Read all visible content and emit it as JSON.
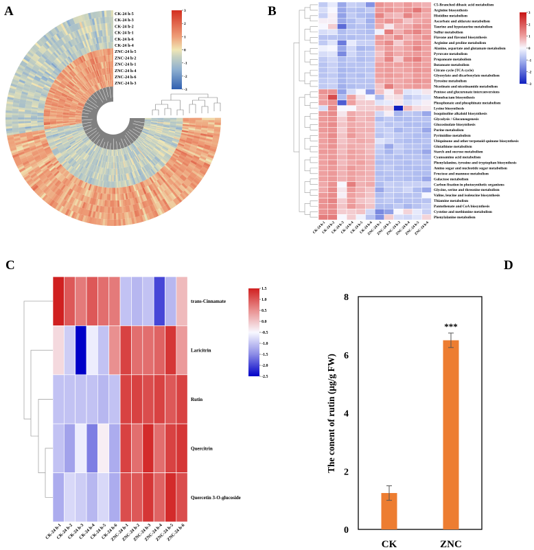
{
  "panel_labels": {
    "a": "A",
    "b": "B",
    "c": "C",
    "d": "D"
  },
  "chart_data": [
    {
      "panel": "A",
      "type": "heatmap",
      "layout": "circular",
      "ring_labels": [
        "CK-24 h-5",
        "CK-24 h-3",
        "CK-24 h-2",
        "CK-24 h-1",
        "CK-24 h-6",
        "CK-24 h-4",
        "ZNC-24 h-5",
        "ZNC-24 h-2",
        "ZNC-24 h-1",
        "ZNC-24 h-4",
        "ZNC-24 h-6",
        "ZNC-24 h-3"
      ],
      "colorbar_ticks": [
        "3",
        "2",
        "1",
        "0",
        "-1",
        "-2",
        "-3"
      ],
      "value_range": [
        -3,
        3
      ],
      "colors": {
        "low": "#2f5fb0",
        "mid": "#f0e6b4",
        "high": "#d32f20"
      },
      "segments": 220,
      "clusters": [
        {
          "fraction": 0.37,
          "ck_mean": -0.7,
          "znc_mean": 1.0
        },
        {
          "fraction": 0.63,
          "ck_mean": 0.9,
          "znc_mean": -0.6
        }
      ]
    },
    {
      "panel": "B",
      "type": "heatmap",
      "columns": [
        "CK-24 h-1",
        "CK-24 h-2",
        "CK-24 h-3",
        "CK-24 h-4",
        "CK-24 h-5",
        "CK-24 h-6",
        "ZNC-24 h-1",
        "ZNC-24 h-2",
        "ZNC-24 h-3",
        "ZNC-24 h-4",
        "ZNC-24 h-5",
        "ZNC-24 h-6"
      ],
      "colorbar_ticks": [
        "3",
        "2",
        "1",
        "0",
        "-1",
        "-2",
        "-3"
      ],
      "value_range": [
        -3,
        3
      ],
      "rows": [
        {
          "name": "C5-Branched dibasic acid metabolism",
          "values": [
            -0.7,
            -0.2,
            -1.2,
            -0.6,
            -0.7,
            -1.5,
            1.2,
            1.0,
            0.9,
            1.1,
            0.9,
            0.8
          ]
        },
        {
          "name": "Arginine biosynthesis",
          "values": [
            -0.4,
            0.0,
            -1.2,
            -0.8,
            -0.9,
            -0.7,
            1.1,
            1.2,
            1.0,
            1.2,
            1.6,
            1.0
          ]
        },
        {
          "name": "Histidine metabolism",
          "values": [
            -0.6,
            0.1,
            -1.3,
            -0.7,
            -0.9,
            -1.0,
            1.4,
            0.8,
            0.7,
            1.4,
            1.0,
            0.9
          ]
        },
        {
          "name": "Ascorbate and aldarate metabolism",
          "values": [
            0.1,
            0.1,
            -1.2,
            -0.9,
            -0.6,
            -1.1,
            1.0,
            1.2,
            1.0,
            0.6,
            0.9,
            1.0
          ]
        },
        {
          "name": "Taurine and hypotaurine metabolism",
          "values": [
            0.0,
            0.5,
            -2.0,
            -0.9,
            -0.8,
            -1.0,
            0.9,
            0.2,
            0.8,
            0.9,
            1.2,
            1.1
          ]
        },
        {
          "name": "Sulfur metabolism",
          "values": [
            -0.4,
            -0.3,
            -0.9,
            -0.7,
            -0.8,
            -0.9,
            -0.1,
            1.5,
            0.8,
            1.2,
            1.4,
            1.0
          ]
        },
        {
          "name": "Flavone and flavonol biosynthesis",
          "values": [
            -0.8,
            -0.8,
            -0.9,
            -0.9,
            -0.8,
            -0.8,
            1.1,
            0.9,
            1.3,
            0.8,
            1.0,
            1.2
          ]
        },
        {
          "name": "Arginine and proline metabolism",
          "values": [
            -0.7,
            -0.3,
            -1.8,
            -0.2,
            -0.6,
            -0.6,
            1.0,
            1.3,
            0.5,
            1.0,
            1.2,
            1.0
          ]
        },
        {
          "name": "Alanine, aspartate and glutamate metabolism",
          "values": [
            -0.1,
            0.0,
            -1.2,
            -0.5,
            -1.0,
            -0.9,
            0.8,
            1.1,
            0.8,
            1.0,
            1.4,
            1.0
          ]
        },
        {
          "name": "Pyruvate metabolism",
          "values": [
            -0.4,
            -0.3,
            -1.6,
            -0.5,
            -0.8,
            -0.7,
            0.6,
            1.2,
            0.9,
            1.0,
            1.1,
            1.0
          ]
        },
        {
          "name": "Propanoate metabolism",
          "values": [
            -0.7,
            -0.5,
            -0.9,
            -0.7,
            -0.9,
            -0.8,
            0.8,
            1.4,
            0.5,
            1.3,
            1.5,
            1.0
          ]
        },
        {
          "name": "Butanoate metabolism",
          "values": [
            -0.8,
            -0.6,
            -0.9,
            -0.8,
            -0.8,
            -0.7,
            1.0,
            1.0,
            1.0,
            1.0,
            1.1,
            1.0
          ]
        },
        {
          "name": "Citrate cycle (TCA cycle)",
          "values": [
            -0.8,
            -0.6,
            -1.0,
            -0.9,
            -0.8,
            -0.8,
            1.0,
            1.1,
            0.9,
            1.0,
            1.2,
            1.1
          ]
        },
        {
          "name": "Glyoxylate and dicarboxylate metabolism",
          "values": [
            -0.8,
            -0.7,
            -1.0,
            -0.8,
            -0.9,
            -0.7,
            1.0,
            1.1,
            1.0,
            0.9,
            1.1,
            1.0
          ]
        },
        {
          "name": "Tyrosine metabolism",
          "values": [
            -0.7,
            -0.6,
            -1.0,
            -0.8,
            -0.8,
            -0.8,
            0.9,
            1.0,
            0.9,
            1.0,
            1.2,
            1.1
          ]
        },
        {
          "name": "Nicotinate and nicotinamide metabolism",
          "values": [
            -0.7,
            -0.6,
            -1.1,
            -0.9,
            -0.8,
            -0.8,
            0.6,
            1.5,
            0.9,
            1.0,
            1.1,
            1.0
          ]
        },
        {
          "name": "Pentose and glucuronate interconversions",
          "values": [
            1.2,
            1.2,
            -1.3,
            -0.4,
            0.0,
            -1.4,
            0.6,
            0.1,
            0.8,
            -0.3,
            -0.2,
            0.2
          ]
        },
        {
          "name": "Monobactam biosynthesis",
          "values": [
            1.0,
            2.2,
            -0.9,
            1.0,
            0.3,
            0.0,
            -0.9,
            0.2,
            0.3,
            -0.7,
            -0.5,
            -0.3
          ]
        },
        {
          "name": "Phosphonate and phosphinate metabolism",
          "values": [
            1.0,
            1.2,
            -2.2,
            1.0,
            0.5,
            0.5,
            -0.3,
            -0.2,
            0.2,
            -0.4,
            -0.2,
            0.1
          ]
        },
        {
          "name": "Lysine biosynthesis",
          "values": [
            -0.4,
            1.3,
            0.0,
            0.0,
            0.5,
            0.5,
            0.6,
            0.4,
            -3.0,
            0.7,
            0.3,
            0.2
          ]
        },
        {
          "name": "Isoquinoline alkaloid biosynthesis",
          "values": [
            1.1,
            1.3,
            0.2,
            0.9,
            0.7,
            0.7,
            -0.5,
            0.1,
            -1.0,
            -0.7,
            -0.8,
            -1.2
          ]
        },
        {
          "name": "Glycolysis / Gluconeogenesis",
          "values": [
            1.1,
            1.2,
            0.5,
            1.0,
            0.7,
            0.8,
            -0.9,
            -0.7,
            -0.9,
            -0.9,
            -0.8,
            -0.8
          ]
        },
        {
          "name": "Glucosinolate biosynthesis",
          "values": [
            1.1,
            1.3,
            0.6,
            0.9,
            0.8,
            0.7,
            -0.6,
            -0.8,
            -0.7,
            -0.9,
            -0.9,
            -0.9
          ]
        },
        {
          "name": "Purine metabolism",
          "values": [
            1.1,
            1.2,
            0.5,
            1.0,
            0.8,
            0.8,
            -0.7,
            -0.6,
            -1.0,
            -0.8,
            -0.8,
            -1.2
          ]
        },
        {
          "name": "Pyrimidine metabolism",
          "values": [
            1.0,
            1.3,
            0.6,
            1.1,
            0.8,
            0.7,
            -0.8,
            -0.6,
            -0.7,
            -0.8,
            -0.9,
            -0.9
          ]
        },
        {
          "name": "Ubiquinone and other terpenoid-quinone biosynthesis",
          "values": [
            1.0,
            1.2,
            0.6,
            0.8,
            0.9,
            0.8,
            -0.3,
            -0.5,
            -0.8,
            -0.9,
            -0.9,
            -0.8
          ]
        },
        {
          "name": "Glutathione metabolism",
          "values": [
            1.0,
            1.2,
            0.7,
            0.9,
            0.8,
            0.7,
            -0.6,
            -1.2,
            -0.6,
            -0.8,
            -0.8,
            -0.9
          ]
        },
        {
          "name": "Starch and sucrose metabolism",
          "values": [
            1.1,
            1.1,
            0.7,
            1.0,
            0.9,
            0.7,
            -0.7,
            -1.0,
            -0.7,
            -0.9,
            -0.9,
            -1.2
          ]
        },
        {
          "name": "Cyanoamino acid metabolism",
          "values": [
            1.0,
            1.1,
            0.8,
            1.0,
            0.9,
            0.8,
            -0.8,
            -0.8,
            -0.9,
            -0.8,
            -0.8,
            -0.9
          ]
        },
        {
          "name": "Phenylalanine, tyrosine and tryptophan biosynthesis",
          "values": [
            1.0,
            1.2,
            0.7,
            0.9,
            1.0,
            0.8,
            -0.9,
            -0.8,
            -0.8,
            -0.9,
            -0.8,
            -0.8
          ]
        },
        {
          "name": "Amino sugar and nucleotide sugar metabolism",
          "values": [
            1.0,
            1.1,
            0.8,
            1.1,
            0.9,
            0.8,
            -0.8,
            -0.7,
            -0.9,
            -0.9,
            -0.9,
            -0.9
          ]
        },
        {
          "name": "Fructose and mannose metabolism",
          "values": [
            1.0,
            1.1,
            0.8,
            1.0,
            0.9,
            0.8,
            -0.9,
            -0.8,
            -0.8,
            -0.8,
            -0.9,
            -0.9
          ]
        },
        {
          "name": "Galactose metabolism",
          "values": [
            1.0,
            1.1,
            0.8,
            1.0,
            0.8,
            0.8,
            -0.8,
            -0.9,
            -0.8,
            -0.9,
            -0.9,
            -1.2
          ]
        },
        {
          "name": "Carbon fixation in photosynthetic organisms",
          "values": [
            0.9,
            1.2,
            0.0,
            1.5,
            0.8,
            0.9,
            -0.9,
            -0.6,
            -0.7,
            -0.6,
            -0.6,
            -0.5
          ]
        },
        {
          "name": "Glycine, serine and threonine metabolism",
          "values": [
            0.9,
            1.3,
            0.2,
            1.1,
            0.8,
            0.6,
            -1.2,
            -0.7,
            -0.7,
            -0.5,
            -0.9,
            -1.2
          ]
        },
        {
          "name": "Valine, leucine and isoleucine biosynthesis",
          "values": [
            1.1,
            1.3,
            0.1,
            1.0,
            0.8,
            0.6,
            -0.9,
            -0.7,
            -0.8,
            -0.8,
            -0.8,
            0.0
          ]
        },
        {
          "name": "Thiamine metabolism",
          "values": [
            1.2,
            1.4,
            0.5,
            1.0,
            0.6,
            0.5,
            -0.8,
            -0.7,
            -0.9,
            -0.8,
            -0.8,
            -0.8
          ]
        },
        {
          "name": "Pantothenate and CoA biosynthesis",
          "values": [
            1.2,
            1.3,
            0.6,
            1.1,
            0.8,
            0.6,
            -0.9,
            -0.9,
            -0.7,
            -1.0,
            -0.8,
            -0.6
          ]
        },
        {
          "name": "Cysteine and methionine metabolism",
          "values": [
            1.2,
            1.3,
            0.5,
            0.5,
            0.6,
            -0.5,
            -1.6,
            -1.3,
            0.0,
            0.4,
            -0.2,
            -0.6
          ]
        },
        {
          "name": "Phenylalanine metabolism",
          "values": [
            1.5,
            1.5,
            0.0,
            0.5,
            -0.1,
            -0.8,
            -1.5,
            0.5,
            -0.4,
            -0.5,
            -0.3,
            0.4
          ]
        }
      ]
    },
    {
      "panel": "C",
      "type": "heatmap",
      "columns": [
        "CK-24 h-1",
        "CK-24 h-2",
        "CK-24 h-3",
        "CK-24 h-4",
        "CK-24 h-5",
        "CK-24 h-6",
        "ZNC-24 h-1",
        "ZNC-24 h-2",
        "ZNC-24 h-3",
        "ZNC-24 h-4",
        "ZNC-24 h-5",
        "ZNC-24 h-6"
      ],
      "colorbar_ticks": [
        "1.5",
        "1.0",
        "0.5",
        "0.0",
        "-0.5",
        "-1.0",
        "-1.5",
        "-2.0",
        "-2.5"
      ],
      "value_range": [
        -2.5,
        1.5
      ],
      "rows": [
        {
          "name": "trans-Cinnamate",
          "values": [
            1.5,
            1.0,
            0.7,
            1.0,
            0.8,
            0.7,
            -1.0,
            -1.1,
            -1.0,
            -2.0,
            -1.1,
            0.1
          ]
        },
        {
          "name": "Laricitrin",
          "values": [
            -0.2,
            -0.9,
            -2.5,
            -0.6,
            -1.0,
            0.5,
            1.2,
            0.8,
            0.8,
            0.9,
            1.3,
            0.4
          ]
        },
        {
          "name": "Rutin",
          "values": [
            -1.0,
            -1.0,
            -1.0,
            -1.0,
            -1.1,
            -1.0,
            1.2,
            1.2,
            1.1,
            1.2,
            1.0,
            1.2
          ]
        },
        {
          "name": "Quercitrin",
          "values": [
            -1.0,
            -1.3,
            -0.6,
            -1.6,
            -0.4,
            -1.2,
            1.2,
            0.8,
            1.4,
            0.8,
            1.2,
            1.3
          ]
        },
        {
          "name": "Quercetin 3-O-glucoside",
          "values": [
            -1.2,
            -0.8,
            -0.9,
            -1.1,
            -0.8,
            -1.2,
            1.1,
            1.0,
            1.3,
            0.9,
            1.4,
            1.1
          ]
        }
      ]
    },
    {
      "panel": "D",
      "type": "bar",
      "categories": [
        "CK",
        "ZNC"
      ],
      "values": [
        1.25,
        6.5
      ],
      "errors": [
        0.25,
        0.25
      ],
      "annotations": [
        "",
        "***"
      ],
      "ylabel": "The conent of rutin (μg/g FW)",
      "ylim": [
        0,
        8
      ],
      "yticks": [
        "0",
        "2",
        "4",
        "6",
        "8"
      ],
      "bar_color": "#ed7d31"
    }
  ]
}
